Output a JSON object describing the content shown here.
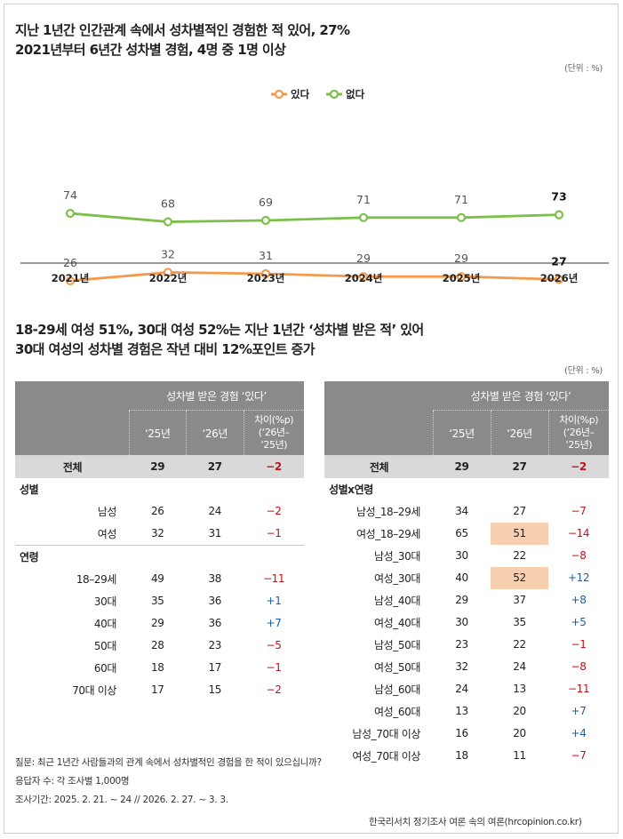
{
  "title1": [
    "지난 1년간 인간관계 속에서 성차별적인 경험한 적 있어, 27%",
    "2021년부터 6년간 성차별 경험, 4명 중 1명 이상"
  ],
  "unit": "(단위 : %)",
  "chart_data": {
    "type": "line",
    "x": [
      "2021년",
      "2022년",
      "2023년",
      "2024년",
      "2025년",
      "2026년"
    ],
    "series": [
      {
        "name": "있다",
        "color": "#f39b4b",
        "values": [
          26,
          32,
          31,
          29,
          29,
          27
        ]
      },
      {
        "name": "없다",
        "color": "#7cc04a",
        "values": [
          74,
          68,
          69,
          71,
          71,
          73
        ]
      }
    ],
    "legend": "top-center"
  },
  "title2": [
    "18-29세 여성 51%, 30대 여성 52%는 지난 1년간 ‘성차별 받은 적’ 있어",
    "30대 여성의 성차별 경험은 작년 대비 12%포인트 증가"
  ],
  "unit2": "(단위 : %)",
  "table_header": {
    "group": "성차별 받은 경험 ‘있다’",
    "y25": "‘25년",
    "y26": "‘26년",
    "diff": [
      "차이(%p)",
      "(‘26년–",
      "‘25년)"
    ]
  },
  "left_table": [
    {
      "kind": "total",
      "label": "전체",
      "y25": "29",
      "y26": "27",
      "diff": "−2",
      "dir": "neg"
    },
    {
      "kind": "group",
      "label": "성별"
    },
    {
      "kind": "row",
      "label": "남성",
      "y25": "26",
      "y26": "24",
      "diff": "−2",
      "dir": "neg"
    },
    {
      "kind": "row",
      "label": "여성",
      "y25": "32",
      "y26": "31",
      "diff": "−1",
      "dir": "neg"
    },
    {
      "kind": "group",
      "label": "연령"
    },
    {
      "kind": "row",
      "label": "18–29세",
      "y25": "49",
      "y26": "38",
      "diff": "−11",
      "dir": "neg"
    },
    {
      "kind": "row",
      "label": "30대",
      "y25": "35",
      "y26": "36",
      "diff": "+1",
      "dir": "pos"
    },
    {
      "kind": "row",
      "label": "40대",
      "y25": "29",
      "y26": "36",
      "diff": "+7",
      "dir": "pos"
    },
    {
      "kind": "row",
      "label": "50대",
      "y25": "28",
      "y26": "23",
      "diff": "−5",
      "dir": "neg"
    },
    {
      "kind": "row",
      "label": "60대",
      "y25": "18",
      "y26": "17",
      "diff": "−1",
      "dir": "neg"
    },
    {
      "kind": "row",
      "label": "70대 이상",
      "y25": "17",
      "y26": "15",
      "diff": "−2",
      "dir": "neg"
    }
  ],
  "right_table": [
    {
      "kind": "total",
      "label": "전체",
      "y25": "29",
      "y26": "27",
      "diff": "−2",
      "dir": "neg"
    },
    {
      "kind": "group",
      "label": "성별x연령"
    },
    {
      "kind": "row",
      "label": "남성_18–29세",
      "y25": "34",
      "y26": "27",
      "diff": "−7",
      "dir": "neg"
    },
    {
      "kind": "row",
      "label": "여성_18–29세",
      "y25": "65",
      "y26": "51",
      "diff": "−14",
      "dir": "neg",
      "hl": true
    },
    {
      "kind": "row",
      "label": "남성_30대",
      "y25": "30",
      "y26": "22",
      "diff": "−8",
      "dir": "neg"
    },
    {
      "kind": "row",
      "label": "여성_30대",
      "y25": "40",
      "y26": "52",
      "diff": "+12",
      "dir": "pos",
      "hl": true
    },
    {
      "kind": "row",
      "label": "남성_40대",
      "y25": "29",
      "y26": "37",
      "diff": "+8",
      "dir": "pos"
    },
    {
      "kind": "row",
      "label": "여성_40대",
      "y25": "30",
      "y26": "35",
      "diff": "+5",
      "dir": "pos"
    },
    {
      "kind": "row",
      "label": "남성_50대",
      "y25": "23",
      "y26": "22",
      "diff": "−1",
      "dir": "neg"
    },
    {
      "kind": "row",
      "label": "여성_50대",
      "y25": "32",
      "y26": "24",
      "diff": "−8",
      "dir": "neg"
    },
    {
      "kind": "row",
      "label": "남성_60대",
      "y25": "24",
      "y26": "13",
      "diff": "−11",
      "dir": "neg"
    },
    {
      "kind": "row",
      "label": "여성_60대",
      "y25": "13",
      "y26": "20",
      "diff": "+7",
      "dir": "pos"
    },
    {
      "kind": "row",
      "label": "남성_70대 이상",
      "y25": "16",
      "y26": "20",
      "diff": "+4",
      "dir": "pos"
    },
    {
      "kind": "row",
      "label": "여성_70대 이상",
      "y25": "18",
      "y26": "11",
      "diff": "−7",
      "dir": "neg"
    }
  ],
  "footnotes": [
    "질문: 최근 1년간 사람들과의 관계 속에서 성차별적인 경험을 한 적이 있으십니까?",
    "응답자 수: 각 조사별 1,000명",
    "조사기간: 2025. 2. 21. ~ 24 // 2026. 2. 27. ~ 3. 3."
  ],
  "source": "한국리서치 정기조사 여론 속의 여론(hrcopinion.co.kr)"
}
